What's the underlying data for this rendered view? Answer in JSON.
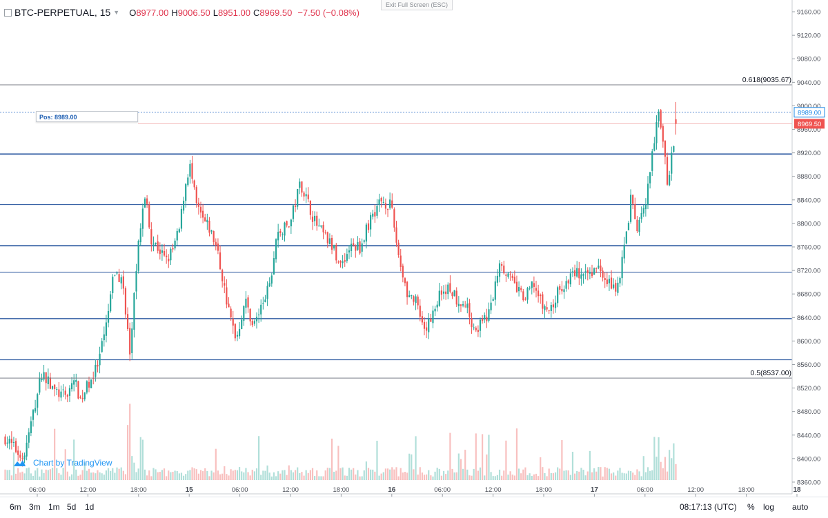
{
  "header": {
    "symbol": "BTC-PERPETUAL, 15",
    "open_label": "O",
    "open": "8977.00",
    "high_label": "H",
    "high": "9006.50",
    "low_label": "L",
    "low": "8951.00",
    "close_label": "C",
    "close": "8969.50",
    "change": "−7.50 (−0.08%)"
  },
  "exit_fullscreen": "Exit Full Screen (ESC)",
  "position_label": "Pos: 8989.00",
  "branding": "Chart by TradingView",
  "bottom_bar": {
    "intervals": [
      "6m",
      "3m",
      "1m",
      "5d",
      "1d"
    ],
    "clock": "08:17:13 (UTC)",
    "percent": "%",
    "log": "log",
    "auto": "auto"
  },
  "colors": {
    "up": "#26a69a",
    "down": "#ef5350",
    "level_line": "#1e4e9a",
    "fib_line": "#787b86",
    "pos_tag": "#1e88e5",
    "price_tag": "#ef5350"
  },
  "chart_data": {
    "type": "candlestick",
    "ylim": [
      8340,
      9180
    ],
    "y_ticks": [
      "9160.00",
      "9120.00",
      "9080.00",
      "9040.00",
      "9000.00",
      "8960.00",
      "8920.00",
      "8880.00",
      "8840.00",
      "8800.00",
      "8760.00",
      "8720.00",
      "8680.00",
      "8640.00",
      "8600.00",
      "8560.00",
      "8520.00",
      "8480.00",
      "8440.00",
      "8400.00",
      "8360.00"
    ],
    "x_ticks": [
      "06:00",
      "12:00",
      "18:00",
      "15",
      "06:00",
      "12:00",
      "18:00",
      "16",
      "06:00",
      "12:00",
      "18:00",
      "17",
      "06:00",
      "12:00",
      "18:00",
      "18"
    ],
    "horizontal_levels": [
      8918,
      8832,
      8762,
      8717,
      8638,
      8568
    ],
    "fib_levels": [
      {
        "label": "0.618(9035.67)",
        "value": 9035.67
      },
      {
        "label": "0.5(8537.00)",
        "value": 8537.0
      }
    ],
    "position_price": 8989.0,
    "position_tag": "8989.00",
    "last_price": 8969.5,
    "last_price_tag": "8969.50",
    "close_path": [
      [
        0,
        8435
      ],
      [
        1.1,
        8400
      ],
      [
        2.2,
        8548
      ],
      [
        2.9,
        8515
      ],
      [
        3.6,
        8505
      ],
      [
        4.1,
        8535
      ],
      [
        4.5,
        8500
      ],
      [
        5.0,
        8530
      ],
      [
        5.5,
        8555
      ],
      [
        6.0,
        8620
      ],
      [
        6.5,
        8718
      ],
      [
        7.0,
        8700
      ],
      [
        7.2,
        8650
      ],
      [
        7.45,
        8575
      ],
      [
        7.7,
        8680
      ],
      [
        8.0,
        8790
      ],
      [
        8.4,
        8850
      ],
      [
        8.7,
        8775
      ],
      [
        9.2,
        8755
      ],
      [
        9.6,
        8735
      ],
      [
        10.0,
        8755
      ],
      [
        10.4,
        8790
      ],
      [
        10.7,
        8860
      ],
      [
        11.0,
        8900
      ],
      [
        11.4,
        8830
      ],
      [
        11.8,
        8805
      ],
      [
        12.2,
        8790
      ],
      [
        12.6,
        8760
      ],
      [
        13.0,
        8700
      ],
      [
        13.4,
        8640
      ],
      [
        13.8,
        8605
      ],
      [
        14.3,
        8670
      ],
      [
        14.8,
        8625
      ],
      [
        15.3,
        8660
      ],
      [
        15.8,
        8695
      ],
      [
        16.2,
        8780
      ],
      [
        16.6,
        8790
      ],
      [
        17.0,
        8800
      ],
      [
        17.6,
        8870
      ],
      [
        18.0,
        8840
      ],
      [
        18.5,
        8800
      ],
      [
        19.0,
        8780
      ],
      [
        19.5,
        8760
      ],
      [
        20.0,
        8730
      ],
      [
        20.6,
        8760
      ],
      [
        21.2,
        8760
      ],
      [
        21.8,
        8810
      ],
      [
        22.4,
        8840
      ],
      [
        23.0,
        8830
      ],
      [
        23.5,
        8740
      ],
      [
        24.0,
        8680
      ],
      [
        24.5,
        8665
      ],
      [
        25.0,
        8610
      ],
      [
        25.5,
        8650
      ],
      [
        26.0,
        8685
      ],
      [
        26.5,
        8690
      ],
      [
        27.0,
        8670
      ],
      [
        27.5,
        8660
      ],
      [
        28.0,
        8620
      ],
      [
        28.5,
        8630
      ],
      [
        29.0,
        8660
      ],
      [
        29.5,
        8740
      ],
      [
        30.0,
        8710
      ],
      [
        30.5,
        8690
      ],
      [
        31.0,
        8670
      ],
      [
        31.5,
        8700
      ],
      [
        32.0,
        8660
      ],
      [
        32.5,
        8650
      ],
      [
        33.0,
        8685
      ],
      [
        33.5,
        8700
      ],
      [
        34.0,
        8720
      ],
      [
        34.5,
        8705
      ],
      [
        35.0,
        8720
      ],
      [
        35.5,
        8725
      ],
      [
        36.0,
        8700
      ],
      [
        36.5,
        8690
      ],
      [
        37.0,
        8770
      ],
      [
        37.3,
        8840
      ],
      [
        37.7,
        8790
      ],
      [
        38.2,
        8830
      ],
      [
        38.6,
        8920
      ],
      [
        39.0,
        8990
      ],
      [
        39.2,
        8950
      ],
      [
        39.5,
        8870
      ],
      [
        39.8,
        8920
      ],
      [
        40.0,
        8969.5
      ]
    ],
    "last_candle": {
      "open": 8977.0,
      "high": 9006.5,
      "low": 8951.0,
      "close": 8969.5
    }
  }
}
